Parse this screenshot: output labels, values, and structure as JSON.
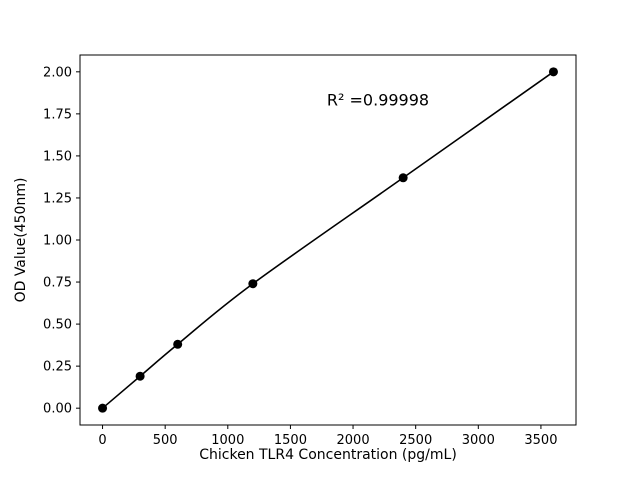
{
  "chart_data": {
    "type": "scatter",
    "title": "",
    "xlabel": "Chicken TLR4 Concentration (pg/mL)",
    "ylabel": "OD Value(450nm)",
    "annotation": "R² =0.99998",
    "x": [
      0,
      300,
      600,
      1200,
      2400,
      3600
    ],
    "y": [
      0.0,
      0.19,
      0.38,
      0.74,
      1.37,
      2.0
    ],
    "x_ticks": [
      0,
      500,
      1000,
      1500,
      2000,
      2500,
      3000,
      3500
    ],
    "y_ticks": [
      0.0,
      0.25,
      0.5,
      0.75,
      1.0,
      1.25,
      1.5,
      1.75,
      2.0
    ],
    "xlim": [
      -180,
      3780
    ],
    "ylim": [
      -0.1,
      2.1
    ],
    "grid": false,
    "legend": null,
    "line_color": "#000000",
    "marker_color": "#000000",
    "axis_color": "#000000",
    "background_color": "#ffffff"
  }
}
